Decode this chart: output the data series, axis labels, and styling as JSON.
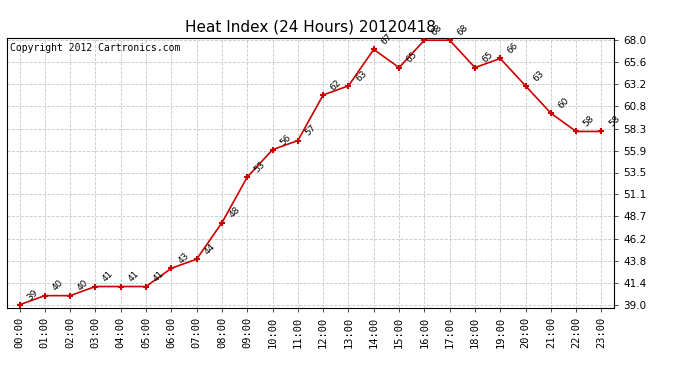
{
  "title": "Heat Index (24 Hours) 20120418",
  "copyright_text": "Copyright 2012 Cartronics.com",
  "hours": [
    0,
    1,
    2,
    3,
    4,
    5,
    6,
    7,
    8,
    9,
    10,
    11,
    12,
    13,
    14,
    15,
    16,
    17,
    18,
    19,
    20,
    21,
    22,
    23
  ],
  "x_labels": [
    "00:00",
    "01:00",
    "02:00",
    "03:00",
    "04:00",
    "05:00",
    "06:00",
    "07:00",
    "08:00",
    "09:00",
    "10:00",
    "11:00",
    "12:00",
    "13:00",
    "14:00",
    "15:00",
    "16:00",
    "17:00",
    "18:00",
    "19:00",
    "20:00",
    "21:00",
    "22:00",
    "23:00"
  ],
  "values": [
    39,
    40,
    40,
    41,
    41,
    41,
    43,
    44,
    48,
    53,
    56,
    57,
    62,
    63,
    67,
    65,
    68,
    68,
    65,
    66,
    63,
    60,
    58,
    58
  ],
  "line_color": "#cc0000",
  "marker_color": "#cc0000",
  "bg_color": "#ffffff",
  "plot_bg_color": "#ffffff",
  "grid_color": "#c8c8c8",
  "title_color": "#000000",
  "copyright_color": "#000000",
  "label_color": "#000000",
  "ylim_min": 39.0,
  "ylim_max": 68.0,
  "yticks": [
    39.0,
    41.4,
    43.8,
    46.2,
    48.7,
    51.1,
    53.5,
    55.9,
    58.3,
    60.8,
    63.2,
    65.6,
    68.0
  ],
  "title_fontsize": 11,
  "copyright_fontsize": 7,
  "annotation_fontsize": 6.5,
  "tick_fontsize": 7.5
}
